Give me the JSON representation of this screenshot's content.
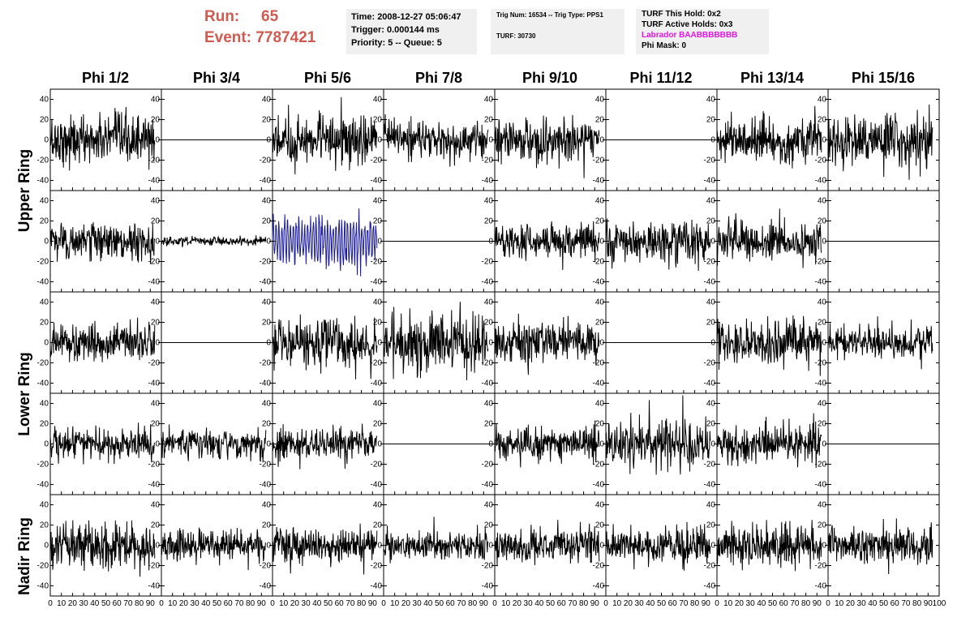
{
  "header": {
    "run_label": "Run:",
    "run_value": "65",
    "event_label": "Event:",
    "event_value": "7787421",
    "time": "Time: 2008-12-27 05:06:47",
    "trigger": "Trigger: 0.000144 ms",
    "priority": "Priority: 5 -- Queue: 5",
    "trig_num": "Trig Num: 16534 -- Trig Type: PPS1",
    "turf": "TURF: 30730",
    "turf_this_hold": "TURF This Hold: 0x2",
    "turf_active_holds": "TURF Active Holds: 0x3",
    "labrador": "Labrador BAABBBBBBB",
    "phi_mask": "Phi Mask: 0",
    "labrador_color": "#e414e4",
    "run_color": "#d05a50"
  },
  "columns": [
    "Phi 1/2",
    "Phi 3/4",
    "Phi 5/6",
    "Phi 7/8",
    "Phi 9/10",
    "Phi 11/12",
    "Phi 13/14",
    "Phi 15/16"
  ],
  "rings": [
    "Upper Ring",
    "Lower Ring",
    "Nadir Ring"
  ],
  "chart_data": {
    "type": "line",
    "description_free": "",
    "x_range": [
      0,
      100
    ],
    "y_range": [
      -50,
      50
    ],
    "x_ticks": [
      0,
      10,
      20,
      30,
      40,
      50,
      60,
      70,
      80,
      90,
      100
    ],
    "x_tick_labels": [
      "0",
      "10",
      "20",
      "30",
      "40",
      "50",
      "60",
      "70",
      "80",
      "90",
      "100"
    ],
    "y_ticks": [
      -40,
      -20,
      0,
      20,
      40
    ],
    "y_tick_labels": [
      "-40",
      "-20",
      "0",
      "20",
      "40"
    ],
    "trace_color": "#000000",
    "highlight_color": "#1a1aa0",
    "panels": [
      [
        {
          "amp": 22,
          "flat": false
        },
        {
          "amp": 0,
          "flat": true
        },
        {
          "amp": 22,
          "flat": false
        },
        {
          "amp": 17,
          "flat": false
        },
        {
          "amp": 20,
          "flat": false
        },
        {
          "amp": 0,
          "flat": true
        },
        {
          "amp": 20,
          "flat": false
        },
        {
          "amp": 24,
          "flat": false
        }
      ],
      [
        {
          "amp": 16,
          "flat": false
        },
        {
          "amp": 4,
          "flat": false
        },
        {
          "amp": 22,
          "flat": false,
          "highlight": true
        },
        {
          "amp": 0,
          "flat": true
        },
        {
          "amp": 16,
          "flat": false
        },
        {
          "amp": 18,
          "flat": false
        },
        {
          "amp": 18,
          "flat": false
        },
        {
          "amp": 0,
          "flat": true
        }
      ],
      [
        {
          "amp": 16,
          "flat": false
        },
        {
          "amp": 0,
          "flat": true
        },
        {
          "amp": 22,
          "flat": false
        },
        {
          "amp": 25,
          "flat": false
        },
        {
          "amp": 18,
          "flat": false
        },
        {
          "amp": 0,
          "flat": true
        },
        {
          "amp": 22,
          "flat": false
        },
        {
          "amp": 14,
          "flat": false
        }
      ],
      [
        {
          "amp": 14,
          "flat": false
        },
        {
          "amp": 14,
          "flat": false
        },
        {
          "amp": 15,
          "flat": false
        },
        {
          "amp": 0,
          "flat": true
        },
        {
          "amp": 17,
          "flat": false
        },
        {
          "amp": 22,
          "flat": false
        },
        {
          "amp": 18,
          "flat": false
        },
        {
          "amp": 0,
          "flat": true
        }
      ],
      [
        {
          "amp": 20,
          "flat": false
        },
        {
          "amp": 14,
          "flat": false
        },
        {
          "amp": 16,
          "flat": false
        },
        {
          "amp": 13,
          "flat": false
        },
        {
          "amp": 15,
          "flat": false
        },
        {
          "amp": 17,
          "flat": false
        },
        {
          "amp": 18,
          "flat": false
        },
        {
          "amp": 17,
          "flat": false
        }
      ]
    ]
  }
}
